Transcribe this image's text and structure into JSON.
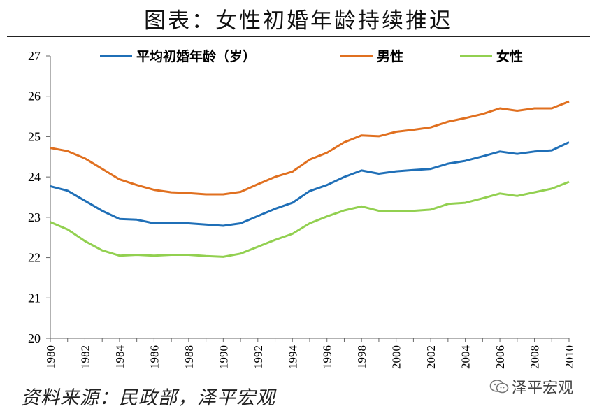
{
  "title": "图表：女性初婚年龄持续推迟",
  "source": "资料来源：民政部，泽平宏观",
  "watermark": {
    "text": "泽平宏观",
    "icon": "wechat-icon"
  },
  "colors": {
    "avg": "#1F6FB7",
    "male": "#E07020",
    "female": "#92D050"
  },
  "chart_data": {
    "type": "line",
    "title": "",
    "xlabel": "",
    "ylabel": "",
    "ylim": [
      20,
      27
    ],
    "yticks": [
      "20",
      "21",
      "22",
      "23",
      "24",
      "25",
      "26",
      "27"
    ],
    "xlim": [
      1980,
      2010
    ],
    "xtick_labels": [
      "1980",
      "1982",
      "1984",
      "1986",
      "1988",
      "1990",
      "1992",
      "1994",
      "1996",
      "1998",
      "2000",
      "2002",
      "2004",
      "2006",
      "2008",
      "2010"
    ],
    "grid": false,
    "legend": "top",
    "x": [
      1980,
      1981,
      1982,
      1983,
      1984,
      1985,
      1986,
      1987,
      1988,
      1989,
      1990,
      1991,
      1992,
      1993,
      1994,
      1995,
      1996,
      1997,
      1998,
      1999,
      2000,
      2001,
      2002,
      2003,
      2004,
      2005,
      2006,
      2007,
      2008,
      2009,
      2010
    ],
    "series": [
      {
        "name": "平均初婚年龄（岁）",
        "color_key": "avg",
        "values": [
          23.77,
          23.66,
          23.41,
          23.16,
          22.96,
          22.94,
          22.85,
          22.85,
          22.85,
          22.82,
          22.79,
          22.85,
          23.03,
          23.21,
          23.36,
          23.65,
          23.8,
          24.0,
          24.16,
          24.08,
          24.14,
          24.17,
          24.2,
          24.33,
          24.4,
          24.51,
          24.63,
          24.57,
          24.63,
          24.66,
          24.86
        ]
      },
      {
        "name": "男性",
        "color_key": "male",
        "values": [
          24.72,
          24.64,
          24.46,
          24.2,
          23.94,
          23.8,
          23.68,
          23.62,
          23.6,
          23.57,
          23.57,
          23.63,
          23.82,
          24.0,
          24.13,
          24.43,
          24.6,
          24.86,
          25.03,
          25.01,
          25.12,
          25.17,
          25.23,
          25.37,
          25.46,
          25.56,
          25.7,
          25.64,
          25.7,
          25.7,
          25.87
        ]
      },
      {
        "name": "女性",
        "color_key": "female",
        "values": [
          22.88,
          22.7,
          22.41,
          22.18,
          22.05,
          22.07,
          22.05,
          22.07,
          22.07,
          22.04,
          22.02,
          22.1,
          22.27,
          22.44,
          22.59,
          22.85,
          23.02,
          23.17,
          23.27,
          23.16,
          23.16,
          23.16,
          23.19,
          23.33,
          23.36,
          23.47,
          23.59,
          23.53,
          23.62,
          23.71,
          23.88
        ]
      }
    ]
  }
}
